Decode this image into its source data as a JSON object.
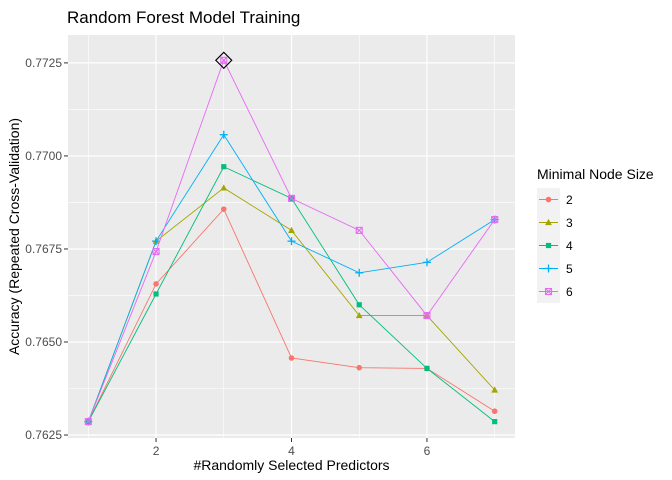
{
  "chart_data": {
    "type": "line",
    "title": "Random Forest Model Training",
    "xlabel": "#Randomly Selected Predictors",
    "ylabel": "Accuracy (Repeated Cross-Validation)",
    "xlim": [
      0.7,
      7.3
    ],
    "ylim": [
      0.76242,
      0.77325
    ],
    "x_ticks": [
      2,
      4,
      6
    ],
    "x_minor_ticks": [
      1,
      3,
      5,
      7
    ],
    "y_ticks": [
      0.7625,
      0.765,
      0.7675,
      0.77,
      0.7725
    ],
    "y_tick_labels": [
      "0.7625",
      "0.7650",
      "0.7675",
      "0.7700",
      "0.7725"
    ],
    "x_tick_labels": [
      "2",
      "4",
      "6"
    ],
    "grid": true,
    "legend": {
      "title": "Minimal Node Size",
      "position": "right"
    },
    "x": [
      1,
      2,
      3,
      4,
      5,
      6,
      7
    ],
    "series": [
      {
        "name": "2",
        "color": "#F8766D",
        "shape": "circle",
        "values": [
          0.76286,
          0.76656,
          0.76857,
          0.76457,
          0.76431,
          0.76429,
          0.76314
        ]
      },
      {
        "name": "3",
        "color": "#A3A500",
        "shape": "triangle",
        "values": [
          0.76286,
          0.76771,
          0.76914,
          0.768,
          0.76571,
          0.76571,
          0.76371
        ]
      },
      {
        "name": "4",
        "color": "#00BF7D",
        "shape": "square",
        "values": [
          0.76286,
          0.76629,
          0.76971,
          0.76886,
          0.766,
          0.76429,
          0.76286
        ]
      },
      {
        "name": "5",
        "color": "#00B0F6",
        "shape": "plus",
        "values": [
          0.76286,
          0.76771,
          0.77057,
          0.76771,
          0.76686,
          0.76714,
          0.76829
        ]
      },
      {
        "name": "6",
        "color": "#E76BF3",
        "shape": "boxx",
        "values": [
          0.76286,
          0.76743,
          0.77257,
          0.76886,
          0.768,
          0.76571,
          0.76829
        ]
      }
    ],
    "best": {
      "x": 3,
      "y": 0.77257,
      "marker": "diamond"
    }
  }
}
